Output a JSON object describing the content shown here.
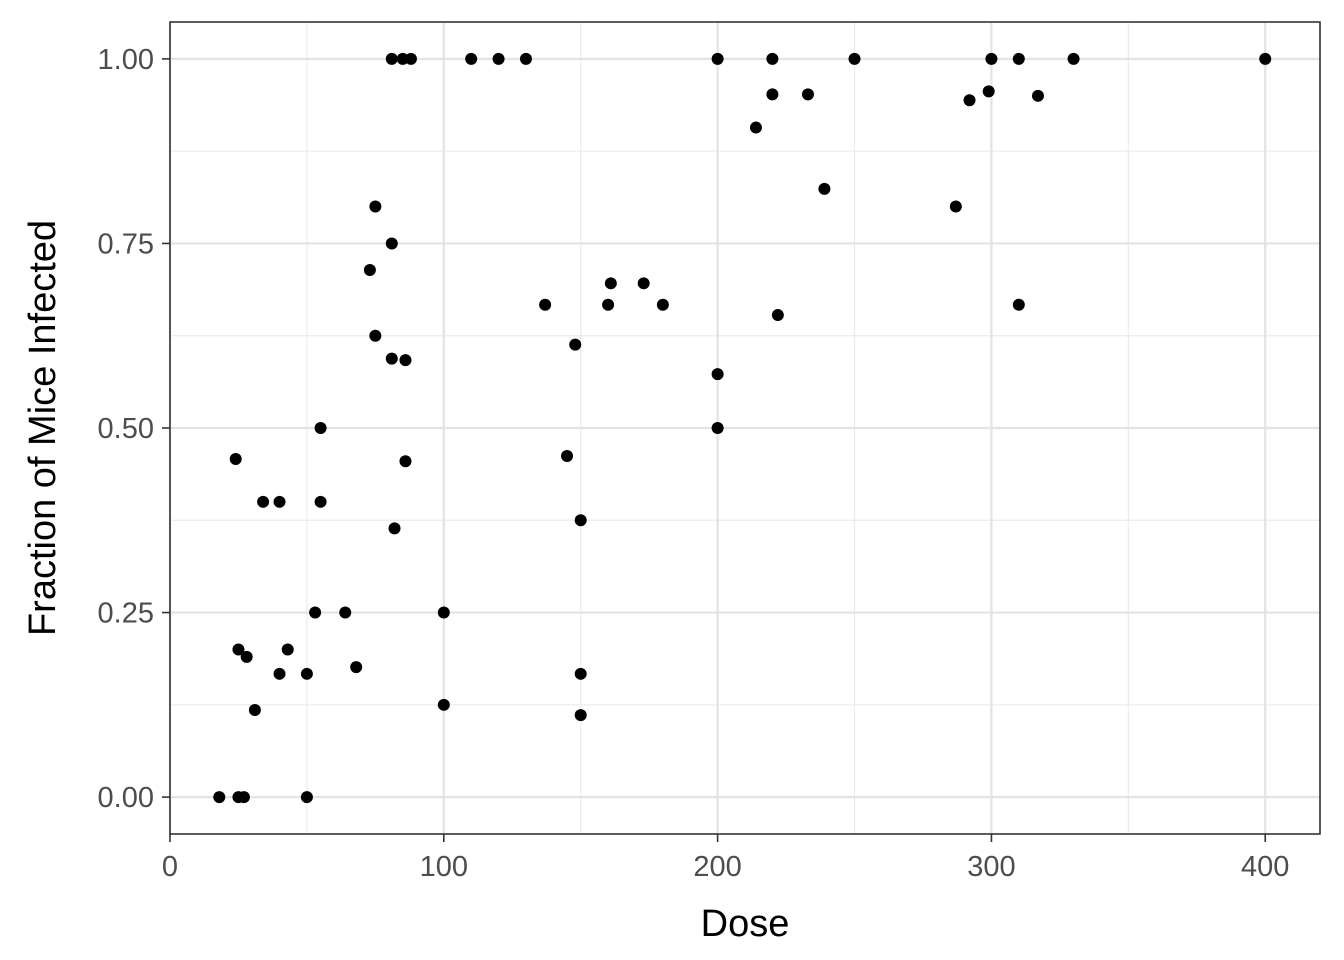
{
  "chart_data": {
    "type": "scatter",
    "xlabel": "Dose",
    "ylabel": "Fraction of Mice Infected",
    "xlim": [
      0,
      420
    ],
    "ylim": [
      -0.05,
      1.05
    ],
    "x_ticks": [
      0,
      100,
      200,
      300,
      400
    ],
    "x_tick_labels": [
      "0",
      "100",
      "200",
      "300",
      "400"
    ],
    "y_ticks": [
      0,
      0.25,
      0.5,
      0.75,
      1.0
    ],
    "y_tick_labels": [
      "0.00",
      "0.25",
      "0.50",
      "0.75",
      "1.00"
    ],
    "grid": true,
    "point_color": "#000000",
    "points": [
      {
        "x": 18,
        "y": 0.0
      },
      {
        "x": 25,
        "y": 0.0
      },
      {
        "x": 27,
        "y": 0.0
      },
      {
        "x": 50,
        "y": 0.0
      },
      {
        "x": 24,
        "y": 0.458
      },
      {
        "x": 25,
        "y": 0.2
      },
      {
        "x": 28,
        "y": 0.19
      },
      {
        "x": 31,
        "y": 0.118
      },
      {
        "x": 34,
        "y": 0.4
      },
      {
        "x": 40,
        "y": 0.4
      },
      {
        "x": 40,
        "y": 0.167
      },
      {
        "x": 43,
        "y": 0.2
      },
      {
        "x": 50,
        "y": 0.167
      },
      {
        "x": 53,
        "y": 0.25
      },
      {
        "x": 55,
        "y": 0.5
      },
      {
        "x": 55,
        "y": 0.4
      },
      {
        "x": 64,
        "y": 0.25
      },
      {
        "x": 68,
        "y": 0.176
      },
      {
        "x": 73,
        "y": 0.714
      },
      {
        "x": 75,
        "y": 0.8
      },
      {
        "x": 75,
        "y": 0.625
      },
      {
        "x": 81,
        "y": 1.0
      },
      {
        "x": 81,
        "y": 0.75
      },
      {
        "x": 81,
        "y": 0.594
      },
      {
        "x": 82,
        "y": 0.364
      },
      {
        "x": 85,
        "y": 1.0
      },
      {
        "x": 86,
        "y": 0.592
      },
      {
        "x": 86,
        "y": 0.455
      },
      {
        "x": 88,
        "y": 1.0
      },
      {
        "x": 100,
        "y": 0.25
      },
      {
        "x": 100,
        "y": 0.125
      },
      {
        "x": 110,
        "y": 1.0
      },
      {
        "x": 120,
        "y": 1.0
      },
      {
        "x": 130,
        "y": 1.0
      },
      {
        "x": 137,
        "y": 0.667
      },
      {
        "x": 145,
        "y": 0.462
      },
      {
        "x": 148,
        "y": 0.613
      },
      {
        "x": 150,
        "y": 0.375
      },
      {
        "x": 150,
        "y": 0.167
      },
      {
        "x": 150,
        "y": 0.111
      },
      {
        "x": 160,
        "y": 0.667
      },
      {
        "x": 161,
        "y": 0.696
      },
      {
        "x": 173,
        "y": 0.696
      },
      {
        "x": 180,
        "y": 0.667
      },
      {
        "x": 200,
        "y": 1.0
      },
      {
        "x": 200,
        "y": 0.573
      },
      {
        "x": 200,
        "y": 0.5
      },
      {
        "x": 214,
        "y": 0.907
      },
      {
        "x": 220,
        "y": 1.0
      },
      {
        "x": 220,
        "y": 0.952
      },
      {
        "x": 222,
        "y": 0.653
      },
      {
        "x": 233,
        "y": 0.952
      },
      {
        "x": 239,
        "y": 0.824
      },
      {
        "x": 250,
        "y": 1.0
      },
      {
        "x": 287,
        "y": 0.8
      },
      {
        "x": 292,
        "y": 0.944
      },
      {
        "x": 299,
        "y": 0.956
      },
      {
        "x": 300,
        "y": 1.0
      },
      {
        "x": 310,
        "y": 1.0
      },
      {
        "x": 310,
        "y": 0.667
      },
      {
        "x": 317,
        "y": 0.95
      },
      {
        "x": 330,
        "y": 1.0
      },
      {
        "x": 400,
        "y": 1.0
      }
    ]
  }
}
